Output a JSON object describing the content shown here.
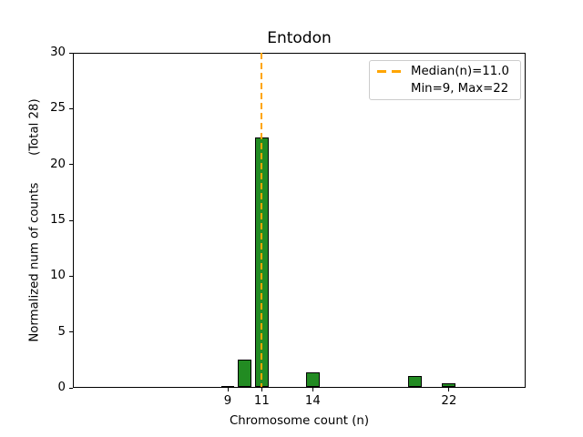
{
  "chart_data": {
    "type": "bar",
    "title": "Entodon",
    "xlabel": "Chromosome count (n)",
    "ylabel": "Normalized num of counts       (Total 28)",
    "total": 28,
    "x": [
      9,
      10,
      11,
      14,
      20,
      22
    ],
    "values": [
      0.15,
      2.5,
      22.4,
      1.4,
      1.05,
      0.4
    ],
    "bar_width_units": 0.8,
    "bar_color": "#228B22",
    "bar_edge_color": "#000000",
    "xlim": [
      -0.1,
      26.5
    ],
    "ylim": [
      0,
      30
    ],
    "xticks": [
      9,
      11,
      14,
      22
    ],
    "yticks": [
      0,
      5,
      10,
      15,
      20,
      25,
      30
    ],
    "grid": false,
    "median_line": {
      "x": 11,
      "color": "#FFA500",
      "style": "dashed"
    },
    "legend": {
      "position": "upper right",
      "entries": [
        {
          "label": "Median(n)=11.0",
          "handle": "orange-dashed-line"
        },
        {
          "label": "Min=9, Max=22",
          "handle": "none"
        }
      ]
    }
  }
}
